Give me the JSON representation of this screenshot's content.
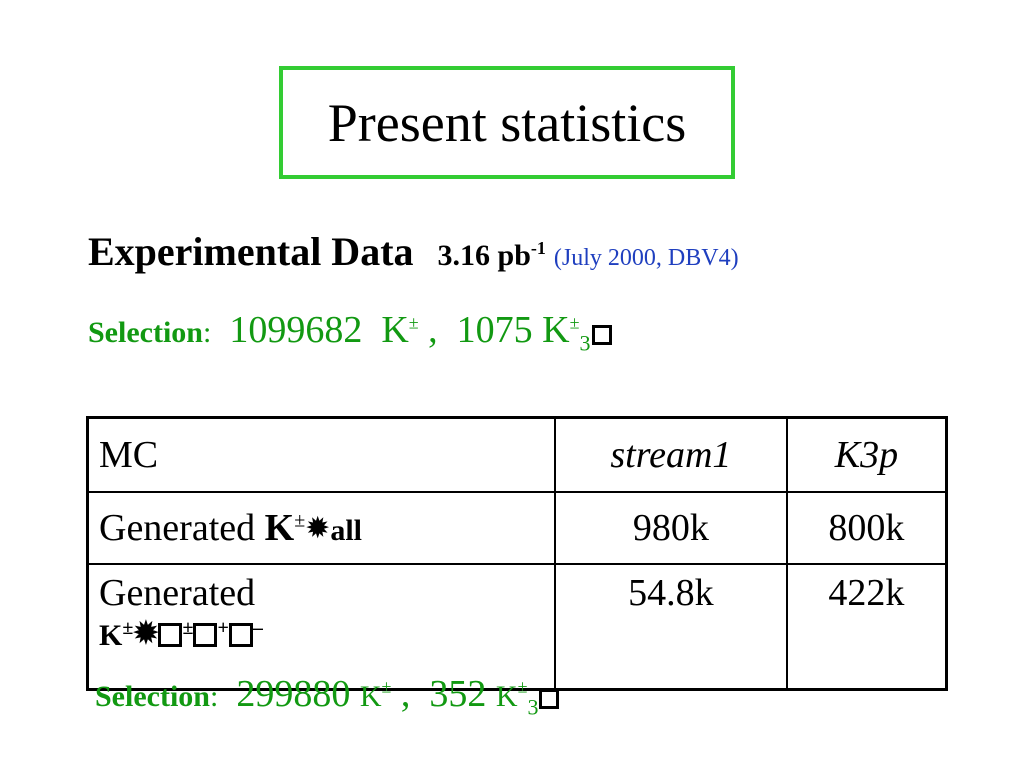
{
  "title": "Present statistics",
  "experimental": {
    "label": "Experimental Data",
    "lumi_value": "3.16 pb",
    "lumi_exp": "-1",
    "note": "(July 2000, DBV4)"
  },
  "selection1": {
    "label": "Selection",
    "colon": ":",
    "count_a": "1099682",
    "k": "K",
    "pm": "±",
    "sep": ",",
    "count_b": "1075",
    "sub3": "3"
  },
  "table": {
    "header": {
      "col1": "MC",
      "col2": "stream1",
      "col3": "K3p"
    },
    "row1": {
      "label": "Generated",
      "k": "K",
      "pm": "±",
      "all": "all",
      "v2": "980k",
      "v3": "800k"
    },
    "row2": {
      "label": "Generated",
      "k": "K",
      "pm1": "±",
      "pm2": "±",
      "plus": "+",
      "minus": "–",
      "v2": "54.8k",
      "v3": "422k"
    }
  },
  "selection2": {
    "label": "Selection",
    "colon": ":",
    "count_a": "299880",
    "k": "K",
    "pm": "±",
    "sep": ",",
    "count_b": "352",
    "sub3": "3"
  },
  "colors": {
    "title_border": "#33cc33",
    "selection_green": "#129912",
    "note_blue": "#1f3fbf"
  },
  "icons": [
    "burst-symbol-icon",
    "box-symbol-icon"
  ]
}
